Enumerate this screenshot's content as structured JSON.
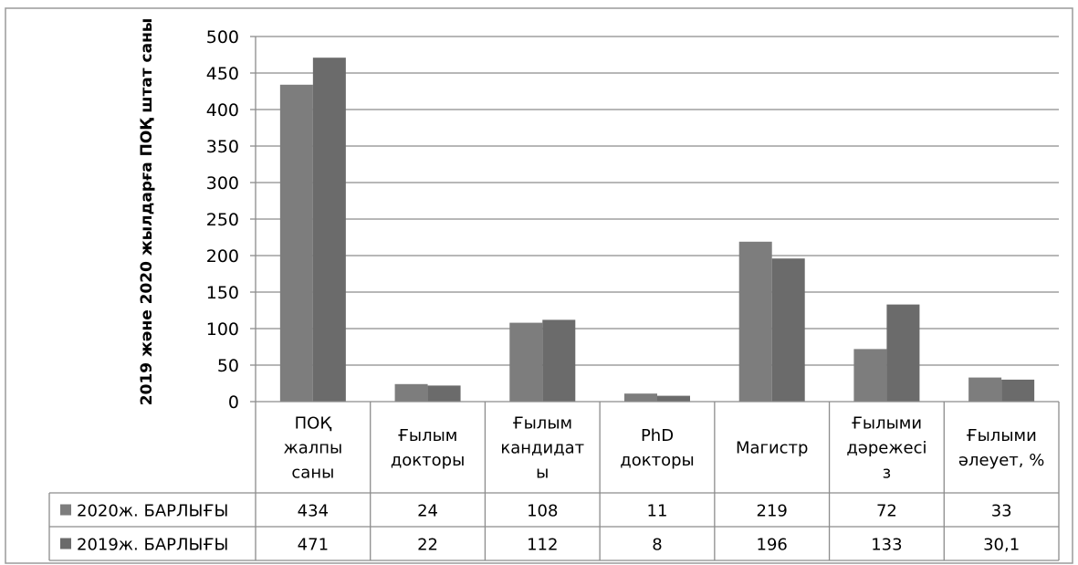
{
  "chart_data": {
    "type": "bar",
    "title": "",
    "xlabel": "",
    "ylabel": "2019 және 2020 жылдарға ПОҚ штат саны",
    "ylim": [
      0,
      500
    ],
    "yticks": [
      0,
      50,
      100,
      150,
      200,
      250,
      300,
      350,
      400,
      450,
      500
    ],
    "grid": true,
    "legend_placement": "data-table-left",
    "categories": [
      [
        "ПОҚ",
        "жалпы",
        "саны"
      ],
      [
        "Ғылым",
        "докторы"
      ],
      [
        "Ғылым",
        "кандидат",
        "ы"
      ],
      [
        "PhD",
        "докторы"
      ],
      [
        "Магистр"
      ],
      [
        "Ғылыми",
        "дәрежесі",
        "з"
      ],
      [
        "Ғылыми",
        "әлеует, %"
      ]
    ],
    "series": [
      {
        "name": "2020ж. БАРЛЫҒЫ",
        "values": [
          434,
          24,
          108,
          11,
          219,
          72,
          33
        ],
        "labels": [
          "434",
          "24",
          "108",
          "11",
          "219",
          "72",
          "33"
        ],
        "color": "#7d7d7d"
      },
      {
        "name": "2019ж. БАРЛЫҒЫ",
        "values": [
          471,
          22,
          112,
          8,
          196,
          133,
          30.1
        ],
        "labels": [
          "471",
          "22",
          "112",
          "8",
          "196",
          "133",
          "30,1"
        ],
        "color": "#6b6b6b"
      }
    ]
  }
}
